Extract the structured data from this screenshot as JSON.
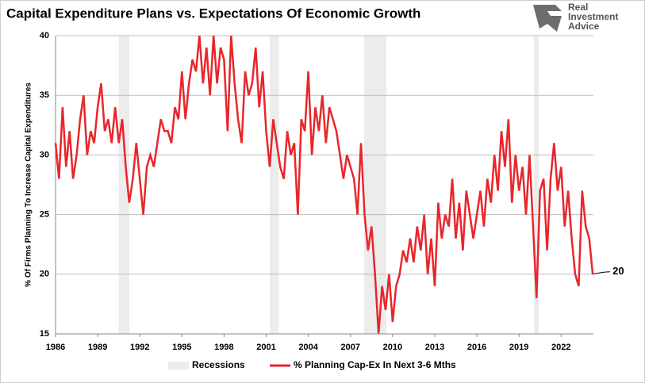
{
  "chart_data": {
    "type": "line",
    "title": "Capital Expenditure Plans vs. Expectations Of Economic Growth",
    "y_label": "% Of Firms Planning To Increase Capital Expenditures",
    "logo": [
      "Real",
      "Investment",
      "Advice"
    ],
    "x": [
      1986,
      1986.25,
      1986.5,
      1986.75,
      1987,
      1987.25,
      1987.5,
      1987.75,
      1988,
      1988.25,
      1988.5,
      1988.75,
      1989,
      1989.25,
      1989.5,
      1989.75,
      1990,
      1990.25,
      1990.5,
      1990.75,
      1991,
      1991.25,
      1991.5,
      1991.75,
      1992,
      1992.25,
      1992.5,
      1992.75,
      1993,
      1993.25,
      1993.5,
      1993.75,
      1994,
      1994.25,
      1994.5,
      1994.75,
      1995,
      1995.25,
      1995.5,
      1995.75,
      1996,
      1996.25,
      1996.5,
      1996.75,
      1997,
      1997.25,
      1997.5,
      1997.75,
      1998,
      1998.25,
      1998.5,
      1998.75,
      1999,
      1999.25,
      1999.5,
      1999.75,
      2000,
      2000.25,
      2000.5,
      2000.75,
      2001,
      2001.25,
      2001.5,
      2001.75,
      2002,
      2002.25,
      2002.5,
      2002.75,
      2003,
      2003.25,
      2003.5,
      2003.75,
      2004,
      2004.25,
      2004.5,
      2004.75,
      2005,
      2005.25,
      2005.5,
      2005.75,
      2006,
      2006.25,
      2006.5,
      2006.75,
      2007,
      2007.25,
      2007.5,
      2007.75,
      2008,
      2008.25,
      2008.5,
      2008.75,
      2009,
      2009.25,
      2009.5,
      2009.75,
      2010,
      2010.25,
      2010.5,
      2010.75,
      2011,
      2011.25,
      2011.5,
      2011.75,
      2012,
      2012.25,
      2012.5,
      2012.75,
      2013,
      2013.25,
      2013.5,
      2013.75,
      2014,
      2014.25,
      2014.5,
      2014.75,
      2015,
      2015.25,
      2015.5,
      2015.75,
      2016,
      2016.25,
      2016.5,
      2016.75,
      2017,
      2017.25,
      2017.5,
      2017.75,
      2018,
      2018.25,
      2018.5,
      2018.75,
      2019,
      2019.25,
      2019.5,
      2019.75,
      2020,
      2020.25,
      2020.5,
      2020.75,
      2021,
      2021.25,
      2021.5,
      2021.75,
      2022,
      2022.25,
      2022.5,
      2022.75,
      2023,
      2023.25,
      2023.5,
      2023.75,
      2024,
      2024.25
    ],
    "series": [
      {
        "name": "% Planning Cap-Ex In Next 3-6 Mths",
        "color": "#e8262b",
        "values": [
          31,
          28,
          34,
          29,
          32,
          28,
          30,
          33,
          35,
          30,
          32,
          31,
          34,
          36,
          32,
          33,
          31,
          34,
          31,
          33,
          29,
          26,
          28,
          31,
          28,
          25,
          29,
          30,
          29,
          31,
          33,
          32,
          32,
          31,
          34,
          33,
          37,
          33,
          36,
          38,
          37,
          40,
          36,
          39,
          35,
          40,
          36,
          39,
          38,
          32,
          40,
          36,
          33,
          31,
          37,
          35,
          36,
          39,
          34,
          37,
          32,
          29,
          33,
          31,
          29,
          28,
          32,
          30,
          31,
          25,
          33,
          32,
          37,
          30,
          34,
          32,
          35,
          31,
          34,
          33,
          32,
          30,
          28,
          30,
          29,
          28,
          25,
          31,
          25,
          22,
          24,
          20,
          15,
          19,
          17,
          20,
          16,
          19,
          20,
          22,
          21,
          23,
          21,
          24,
          22,
          25,
          20,
          23,
          19,
          26,
          23,
          25,
          24,
          28,
          23,
          26,
          22,
          27,
          25,
          23,
          25,
          27,
          24,
          28,
          26,
          30,
          27,
          32,
          29,
          33,
          26,
          30,
          27,
          29,
          25,
          30,
          24,
          18,
          27,
          28,
          22,
          28,
          31,
          27,
          29,
          24,
          27,
          23,
          20,
          19,
          27,
          24,
          23,
          20
        ]
      }
    ],
    "recessions": {
      "name": "Recessions",
      "color": "#ececec",
      "spans": [
        [
          1990.5,
          1991.25
        ],
        [
          2001.25,
          2001.9
        ],
        [
          2007.97,
          2009.55
        ],
        [
          2020.07,
          2020.4
        ]
      ]
    },
    "xlim": [
      1986,
      2024.3
    ],
    "xticks": [
      1986,
      1989,
      1992,
      1995,
      1998,
      2001,
      2004,
      2007,
      2010,
      2013,
      2016,
      2019,
      2022
    ],
    "ylim": [
      15,
      40
    ],
    "yticks": [
      15,
      20,
      25,
      30,
      35,
      40
    ],
    "grid": true
  }
}
